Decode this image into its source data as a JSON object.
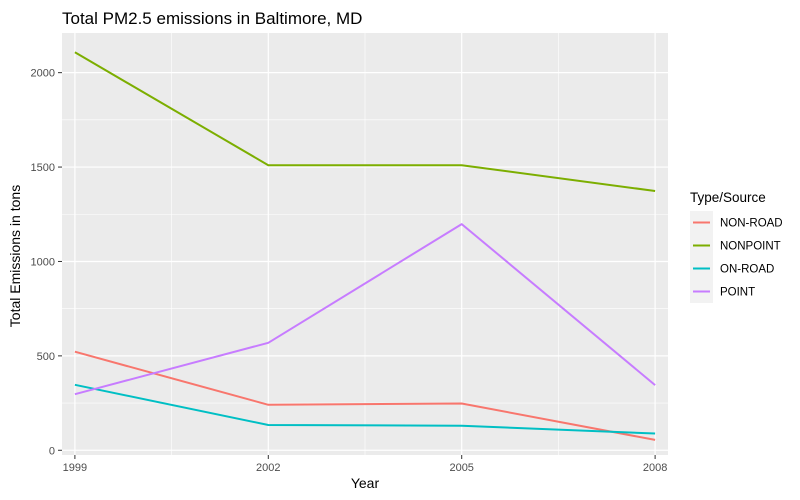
{
  "chart_data": {
    "type": "line",
    "title": "Total PM2.5 emissions in Baltimore, MD",
    "xlabel": "Year",
    "ylabel": "Total Emissions in tons",
    "x": [
      1999,
      2002,
      2005,
      2008
    ],
    "xlim": [
      1998.8,
      2008.2
    ],
    "ylim": [
      -25,
      2210
    ],
    "x_ticks": [
      1999,
      2002,
      2005,
      2008
    ],
    "x_minor": [
      2000.5,
      2003.5,
      2006.5
    ],
    "y_ticks": [
      0,
      500,
      1000,
      1500,
      2000
    ],
    "y_minor": [
      250,
      750,
      1250,
      1750
    ],
    "grid": true,
    "background": "#ebebeb",
    "legend": {
      "title": "Type/Source",
      "position": "right"
    },
    "series": [
      {
        "name": "NON-ROAD",
        "color": "#F8766D",
        "values": [
          522,
          241,
          248,
          55
        ]
      },
      {
        "name": "NONPOINT",
        "color": "#7CAE00",
        "values": [
          2108,
          1510,
          1510,
          1373
        ]
      },
      {
        "name": "ON-ROAD",
        "color": "#00BFC4",
        "values": [
          347,
          134,
          130,
          89
        ]
      },
      {
        "name": "POINT",
        "color": "#C77CFF",
        "values": [
          297,
          569,
          1198,
          345
        ]
      }
    ]
  }
}
